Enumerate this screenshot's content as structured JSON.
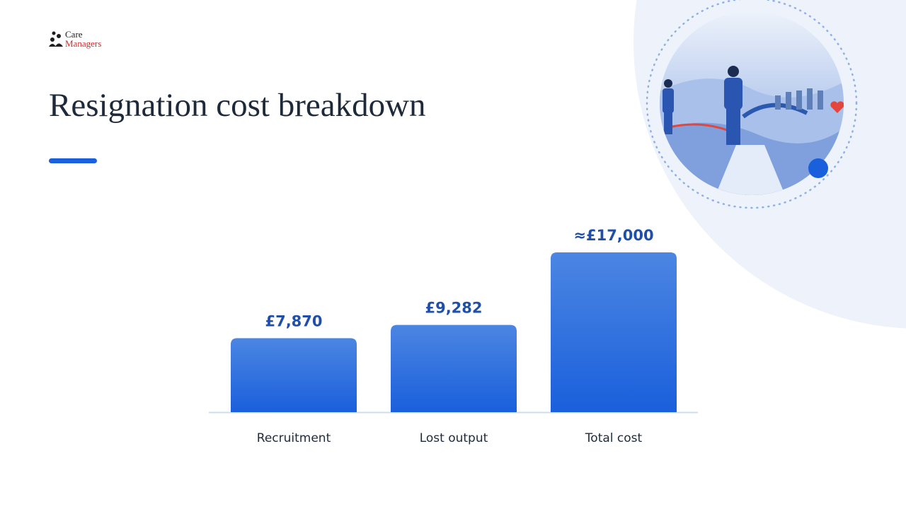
{
  "logo": {
    "line1": "Care",
    "line2": "Managers"
  },
  "chart_data": {
    "type": "bar",
    "title": "Resignation cost breakdown",
    "categories": [
      "Recruitment",
      "Lost output",
      "Total cost"
    ],
    "values": [
      7870,
      9282,
      17000
    ],
    "value_labels": [
      "£7,870",
      "£9,282",
      "≈£17,000"
    ],
    "color": "#1a5fdc"
  }
}
